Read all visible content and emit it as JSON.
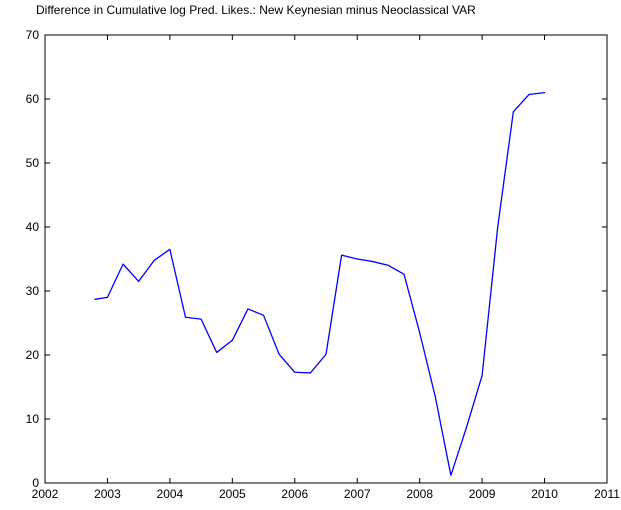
{
  "chart_data": {
    "type": "line",
    "title": "Difference in Cumulative log Pred. Likes.: New Keynesian minus Neoclassical VAR",
    "xlabel": "",
    "ylabel": "",
    "xlim": [
      2002,
      2011
    ],
    "ylim": [
      0,
      70
    ],
    "grid": false,
    "x_ticks": [
      2002,
      2003,
      2004,
      2005,
      2006,
      2007,
      2008,
      2009,
      2010,
      2011
    ],
    "x_tick_labels": [
      "2002",
      "2003",
      "2004",
      "2005",
      "2006",
      "2007",
      "2008",
      "2009",
      "2010",
      "2011"
    ],
    "y_ticks": [
      0,
      10,
      20,
      30,
      40,
      50,
      60,
      70
    ],
    "y_tick_labels": [
      "0",
      "10",
      "20",
      "30",
      "40",
      "50",
      "60",
      "70"
    ],
    "series": [
      {
        "color": "#0000ff",
        "x": [
          2002.8,
          2003.0,
          2003.25,
          2003.5,
          2003.75,
          2004.0,
          2004.25,
          2004.5,
          2004.75,
          2005.0,
          2005.25,
          2005.5,
          2005.75,
          2006.0,
          2006.25,
          2006.5,
          2006.75,
          2007.0,
          2007.25,
          2007.5,
          2007.75,
          2008.0,
          2008.25,
          2008.5,
          2008.75,
          2009.0,
          2009.25,
          2009.5,
          2009.75,
          2010.0
        ],
        "y": [
          28.7,
          29.0,
          34.2,
          31.5,
          34.8,
          36.5,
          25.9,
          25.6,
          20.4,
          22.3,
          27.2,
          26.2,
          20.1,
          17.3,
          17.2,
          20.1,
          35.6,
          35.0,
          34.6,
          34.0,
          32.6,
          23.5,
          13.5,
          1.2,
          8.7,
          16.8,
          40.0,
          58.0,
          60.7,
          61.0
        ]
      }
    ]
  }
}
